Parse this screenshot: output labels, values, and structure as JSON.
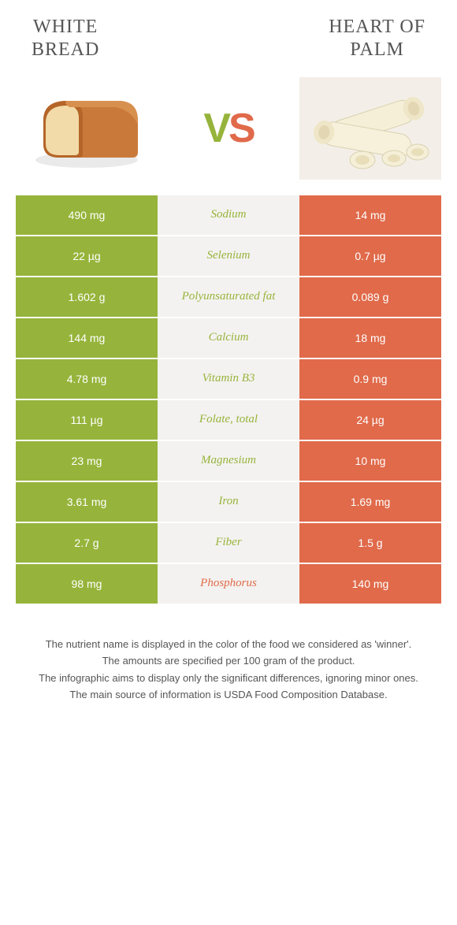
{
  "titles": {
    "left": "WHITE\nBREAD",
    "right": "HEART OF\nPALM"
  },
  "vs": {
    "v": "V",
    "s": "S"
  },
  "colors": {
    "green": "#96b43b",
    "orange": "#e06a4a",
    "mid_bg": "#f4f2f0",
    "row_gap": "#ffffff",
    "text_dark": "#555555"
  },
  "rows": [
    {
      "left": "490 mg",
      "label": "Sodium",
      "right": "14 mg",
      "winner": "left"
    },
    {
      "left": "22 µg",
      "label": "Selenium",
      "right": "0.7 µg",
      "winner": "left"
    },
    {
      "left": "1.602 g",
      "label": "Polyunsaturated fat",
      "right": "0.089 g",
      "winner": "left"
    },
    {
      "left": "144 mg",
      "label": "Calcium",
      "right": "18 mg",
      "winner": "left"
    },
    {
      "left": "4.78 mg",
      "label": "Vitamin B3",
      "right": "0.9 mg",
      "winner": "left"
    },
    {
      "left": "111 µg",
      "label": "Folate, total",
      "right": "24 µg",
      "winner": "left"
    },
    {
      "left": "23 mg",
      "label": "Magnesium",
      "right": "10 mg",
      "winner": "left"
    },
    {
      "left": "3.61 mg",
      "label": "Iron",
      "right": "1.69 mg",
      "winner": "left"
    },
    {
      "left": "2.7 g",
      "label": "Fiber",
      "right": "1.5 g",
      "winner": "left"
    },
    {
      "left": "98 mg",
      "label": "Phosphorus",
      "right": "140 mg",
      "winner": "right"
    }
  ],
  "footer": [
    "The nutrient name is displayed in the color of the food we considered as 'winner'.",
    "The amounts are specified per 100 gram of the product.",
    "The infographic aims to display only the significant differences, ignoring minor ones.",
    "The main source of information is USDA Food Composition Database."
  ]
}
